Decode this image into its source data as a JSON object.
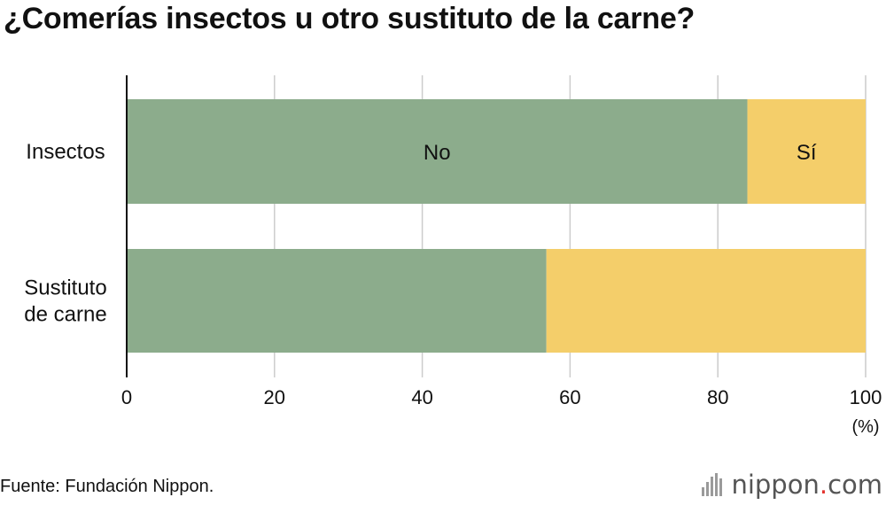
{
  "chart_data": {
    "type": "bar",
    "orientation": "horizontal",
    "stacked": true,
    "title": "¿Comerías insectos u otro sustituto de la carne?",
    "categories": [
      "Insectos",
      "Sustituto de carne"
    ],
    "category_lines": [
      [
        "Insectos"
      ],
      [
        "Sustituto",
        "de carne"
      ]
    ],
    "series": [
      {
        "name": "No",
        "values": [
          84,
          56.8
        ],
        "color": "#8cac8c"
      },
      {
        "name": "Sí",
        "values": [
          16,
          43.2
        ],
        "color": "#f4ce6a"
      }
    ],
    "xlim": [
      0,
      100
    ],
    "xticks": [
      0,
      20,
      40,
      60,
      80,
      100
    ],
    "x_unit": "(%)",
    "grid": true,
    "legend": "inline labels on first bar"
  },
  "footer": {
    "source": "Fuente: Fundación Nippon.",
    "brand_main": "nippon",
    "brand_dot": ".",
    "brand_tld": "com"
  }
}
